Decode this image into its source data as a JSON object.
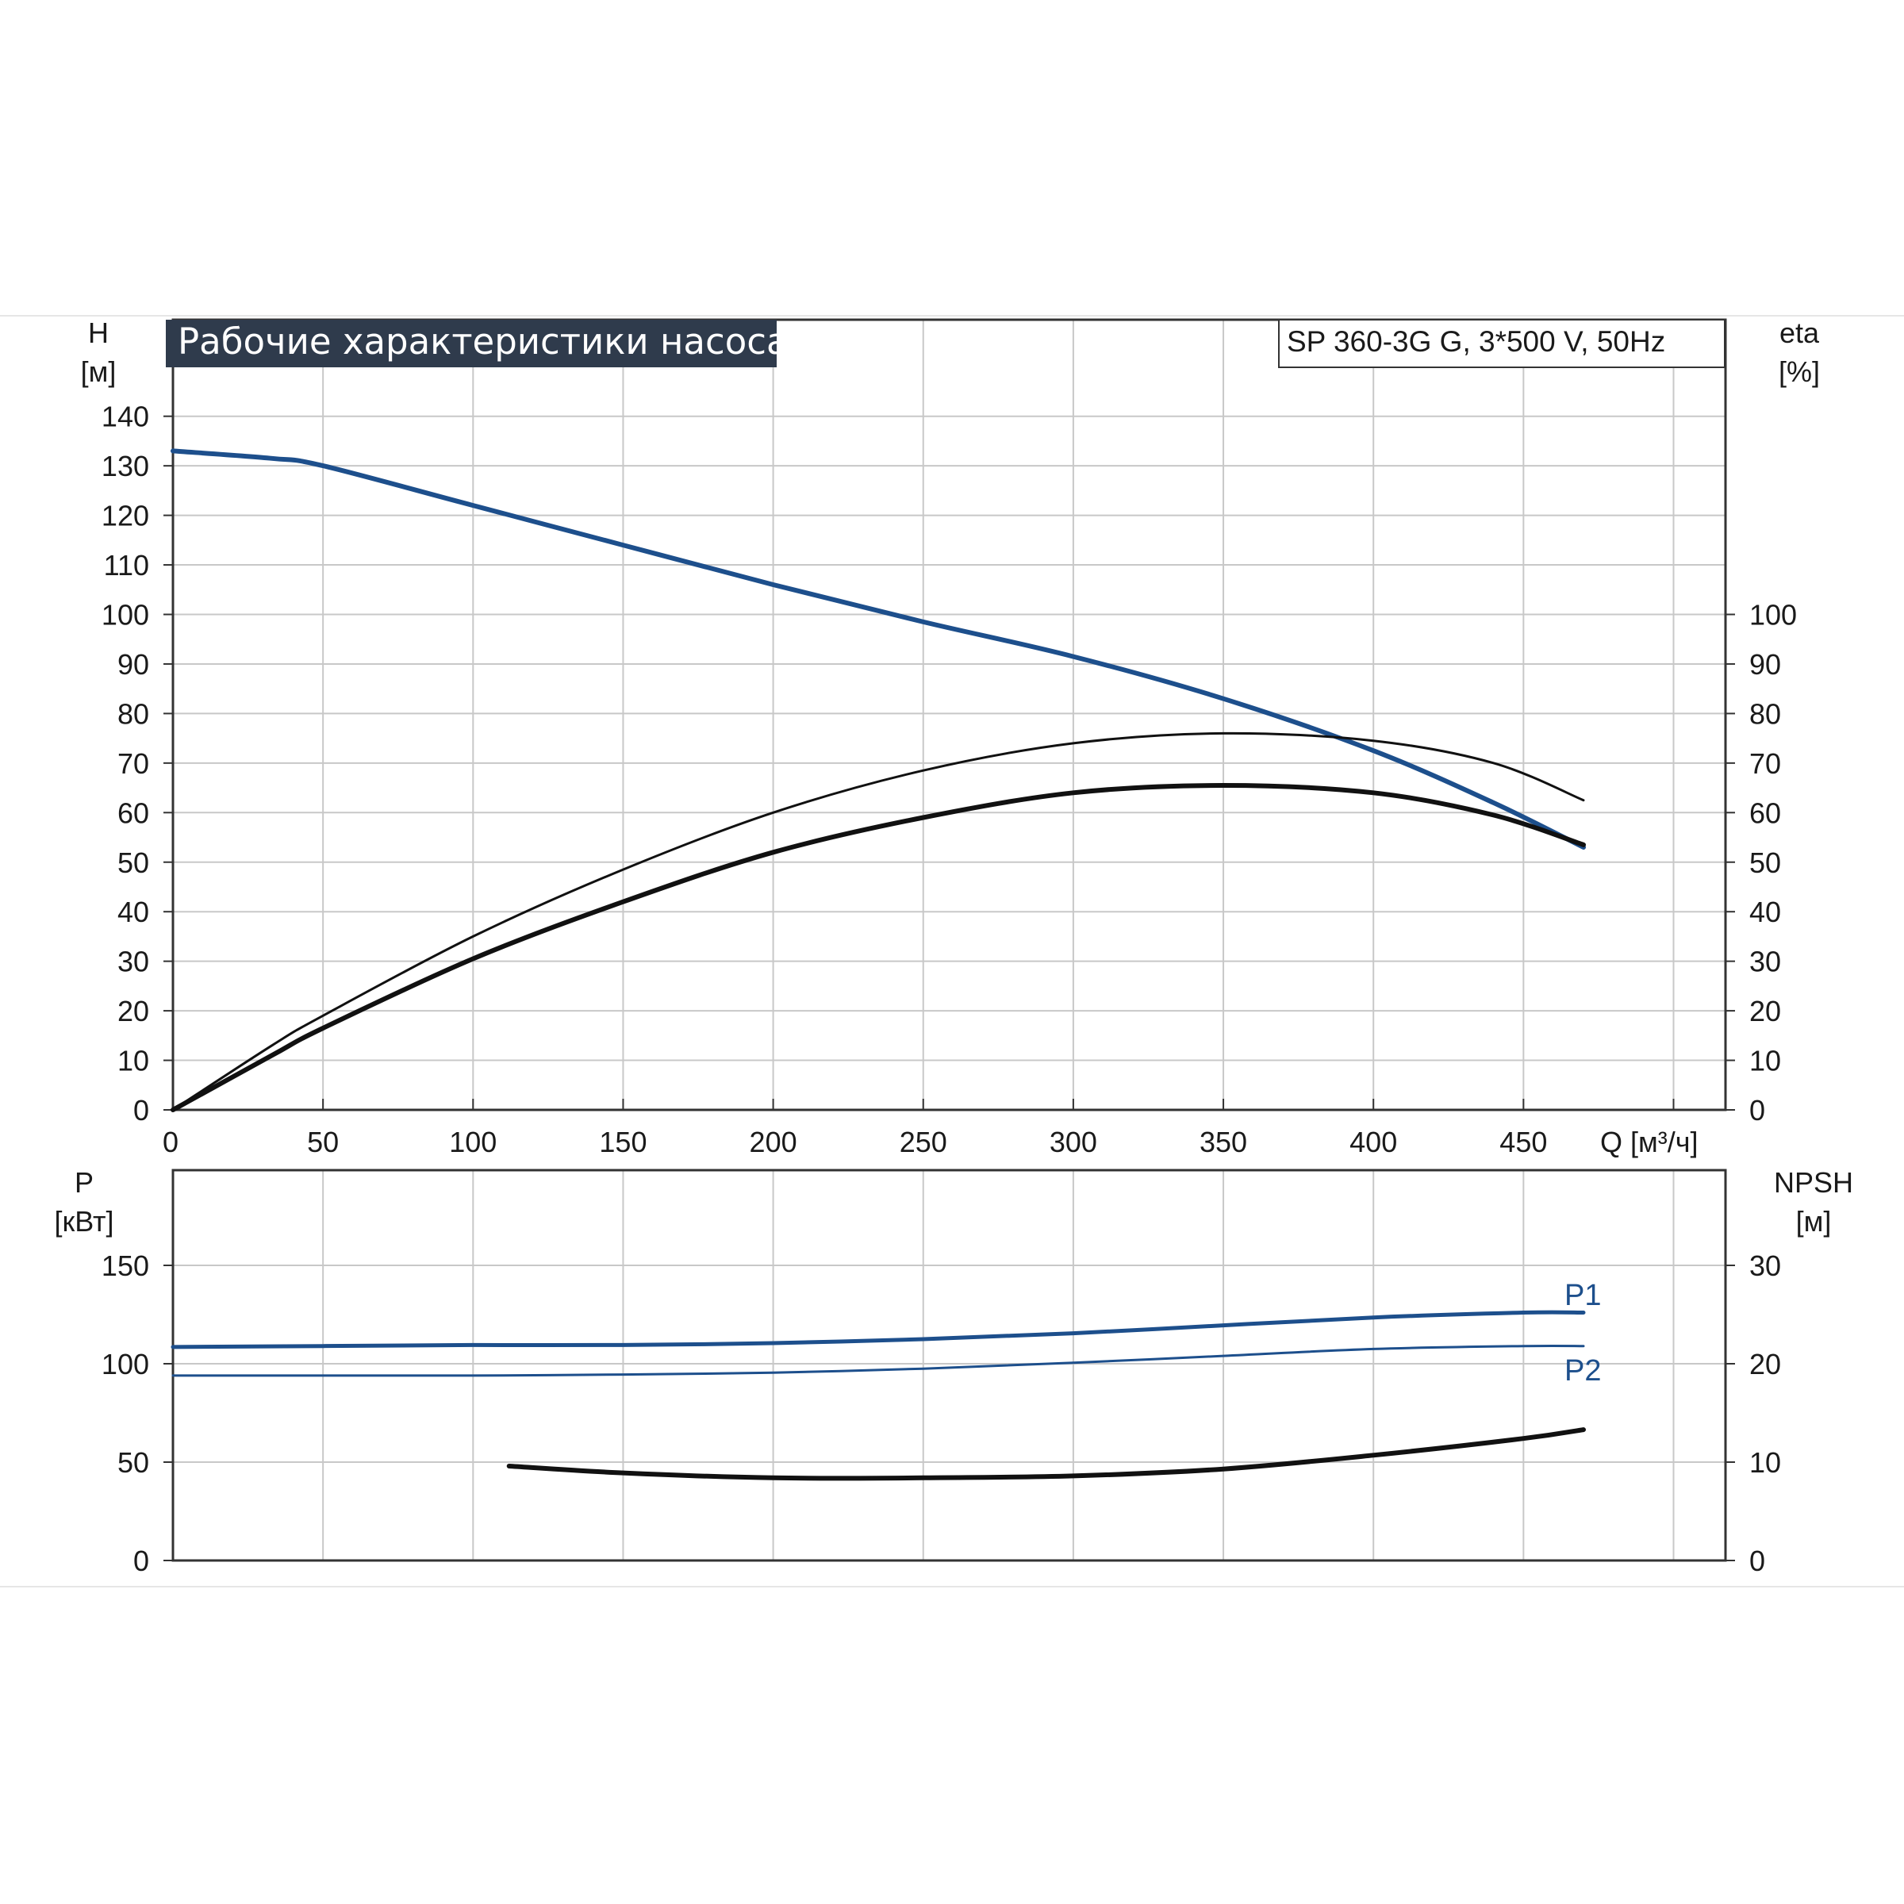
{
  "chart_data": [
    {
      "type": "line",
      "title": "Рабочие характеристики насоса",
      "subtitle": "SP 360-3G G, 3*500 V, 50Hz",
      "xlabel": "Q [м³/ч]",
      "ylabel": [
        "H",
        "[м]"
      ],
      "y2label": [
        "eta",
        "[%]"
      ],
      "xlim": [
        0,
        520
      ],
      "ylim": [
        0,
        150
      ],
      "y2lim": [
        0,
        150
      ],
      "x_ticks": [
        "0",
        "50",
        "100",
        "150",
        "200",
        "250",
        "300",
        "350",
        "400",
        "450"
      ],
      "y_ticks": [
        "0",
        "10",
        "20",
        "30",
        "40",
        "50",
        "60",
        "70",
        "80",
        "90",
        "100",
        "110",
        "120",
        "130",
        "140"
      ],
      "y2_ticks": [
        "0",
        "10",
        "20",
        "30",
        "40",
        "50",
        "60",
        "70",
        "80",
        "90",
        "100"
      ],
      "grid": true,
      "colors": {
        "head": "#1d4f8c",
        "efficiency": "#111111",
        "title_bg": "#2f3b4c",
        "grid": "#c8c8c8"
      },
      "series": [
        {
          "id": "head",
          "axis": "left",
          "color": "#1d4f8c",
          "width": 6,
          "x": [
            0,
            33,
            50,
            100,
            150,
            200,
            250,
            300,
            350,
            400,
            440,
            470
          ],
          "y": [
            133,
            131.5,
            130,
            122,
            114,
            106,
            98.5,
            91.5,
            83,
            72.5,
            62,
            53
          ]
        },
        {
          "id": "eta-thin",
          "axis": "right",
          "color": "#111111",
          "width": 3,
          "x": [
            0,
            33,
            50,
            100,
            150,
            200,
            250,
            300,
            350,
            400,
            440,
            470
          ],
          "y": [
            0,
            13,
            19,
            35,
            48.5,
            60,
            68.5,
            74,
            76,
            74.5,
            70,
            62.5
          ]
        },
        {
          "id": "eta-thick",
          "axis": "right",
          "color": "#111111",
          "width": 6,
          "x": [
            0,
            33,
            50,
            100,
            150,
            200,
            250,
            300,
            350,
            400,
            440,
            470
          ],
          "y": [
            0,
            11,
            16.5,
            30.5,
            42,
            52,
            59,
            64,
            65.5,
            64,
            59.5,
            53.5
          ]
        }
      ]
    },
    {
      "type": "line",
      "title": "",
      "xlim": [
        0,
        520
      ],
      "ylim": [
        0,
        200
      ],
      "y2lim": [
        0,
        40
      ],
      "ylabel": [
        "P",
        "[кВт]"
      ],
      "y2label": [
        "NPSH",
        "[м]"
      ],
      "y_ticks": [
        "0",
        "50",
        "100",
        "150"
      ],
      "y2_ticks": [
        "0",
        "10",
        "20",
        "30"
      ],
      "grid": true,
      "series": [
        {
          "id": "p1",
          "name": "P1",
          "axis": "left",
          "color": "#1d4f8c",
          "width": 5,
          "x": [
            0,
            50,
            100,
            150,
            200,
            250,
            300,
            350,
            400,
            450,
            470
          ],
          "y": [
            108.5,
            109,
            109.5,
            109.5,
            110.5,
            112.5,
            115.5,
            119.5,
            123.5,
            126,
            126
          ]
        },
        {
          "id": "p2",
          "name": "P2",
          "axis": "left",
          "color": "#1d4f8c",
          "width": 3,
          "x": [
            0,
            50,
            100,
            150,
            200,
            250,
            300,
            350,
            400,
            450,
            470
          ],
          "y": [
            94,
            94,
            94,
            94.5,
            95.5,
            97.5,
            100.5,
            104,
            107.5,
            109,
            109
          ]
        },
        {
          "id": "npsh",
          "axis": "right",
          "color": "#111111",
          "width": 6,
          "x": [
            112,
            150,
            200,
            250,
            300,
            350,
            400,
            450,
            470
          ],
          "y": [
            9.6,
            8.9,
            8.4,
            8.4,
            8.6,
            9.3,
            10.7,
            12.4,
            13.3
          ]
        }
      ]
    }
  ]
}
